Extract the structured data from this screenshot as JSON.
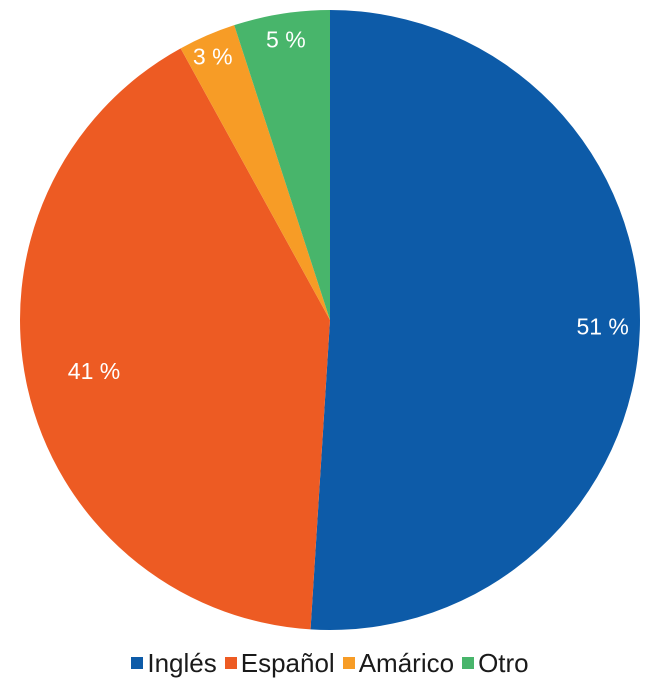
{
  "chart_data": {
    "type": "pie",
    "categories": [
      "Inglés",
      "Español",
      "Amárico",
      "Otro"
    ],
    "values": [
      51,
      41,
      3,
      5
    ],
    "labels": [
      "51 %",
      "41 %",
      "3 %",
      "5 %"
    ],
    "colors": [
      "#0d5ba8",
      "#ed5b23",
      "#f79c26",
      "#48b56b"
    ],
    "start_angle_deg": 0,
    "direction": "clockwise",
    "legend_position": "bottom"
  }
}
